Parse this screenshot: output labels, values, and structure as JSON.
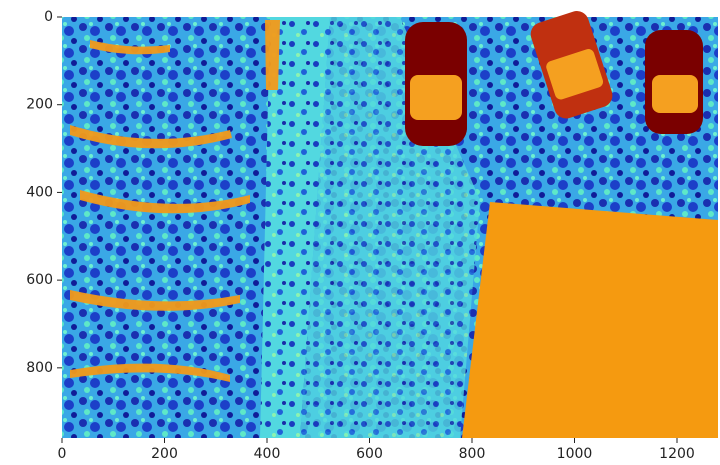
{
  "chart_data": {
    "type": "image",
    "xlim": [
      0,
      1280
    ],
    "ylim": [
      960,
      0
    ],
    "xticks": [
      0,
      200,
      400,
      600,
      800,
      1000,
      1200
    ],
    "yticks": [
      0,
      200,
      400,
      600,
      800
    ]
  }
}
